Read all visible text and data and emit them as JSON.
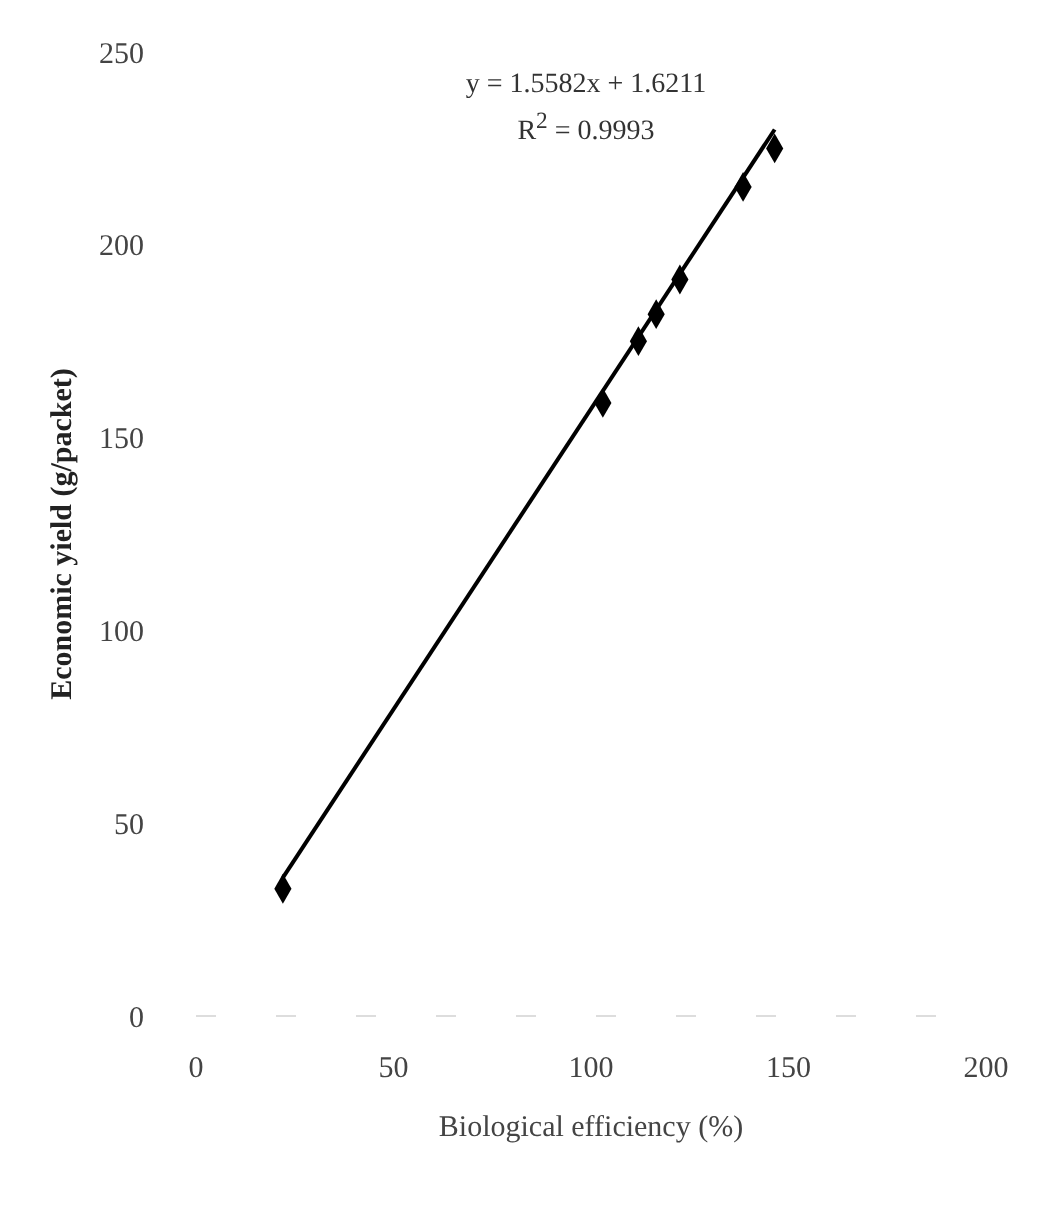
{
  "chart_data": {
    "type": "scatter",
    "xlabel": "Biological efficiency (%)",
    "ylabel": "Economic yield (g/packet)",
    "xlim": [
      0,
      200
    ],
    "xticks": [
      0,
      50,
      100,
      150,
      200
    ],
    "ylim": [
      0,
      250
    ],
    "yticks": [
      0,
      50,
      100,
      150,
      200,
      250
    ],
    "grid": false,
    "marker": "diamond",
    "series": [
      {
        "color": "#000000",
        "x": [
          22,
          103,
          112,
          116.5,
          122.5,
          138.5,
          146.5
        ],
        "values": [
          33,
          159,
          175,
          182,
          191,
          215,
          225
        ]
      },
      {
        "type": "line",
        "color": "#000000",
        "line_style": "solid",
        "marker": "none",
        "x": [
          22,
          146.5
        ],
        "values": [
          35.9,
          229.9
        ]
      }
    ],
    "annotations": [
      "y = 1.5582x + 1.6211",
      "R$^{2}$ = 0.9993"
    ]
  }
}
